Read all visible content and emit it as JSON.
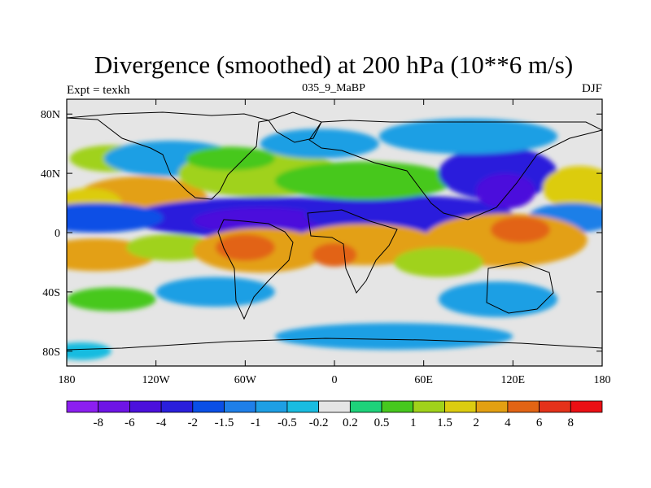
{
  "chart_data": {
    "type": "heatmap",
    "title": "Divergence (smoothed) at 200 hPa (10**6 m/s)",
    "subtitle_left": "Expt = texkh",
    "subtitle_center": "035_9_MaBP",
    "subtitle_right": "DJF",
    "xlim": [
      -180,
      180
    ],
    "ylim": [
      -90,
      90
    ],
    "x_ticks": [
      {
        "value": -180,
        "label": "180"
      },
      {
        "value": -120,
        "label": "120W"
      },
      {
        "value": -60,
        "label": "60W"
      },
      {
        "value": 0,
        "label": "0"
      },
      {
        "value": 60,
        "label": "60E"
      },
      {
        "value": 120,
        "label": "120E"
      },
      {
        "value": 180,
        "label": "180"
      }
    ],
    "y_ticks": [
      {
        "value": 80,
        "label": "80N"
      },
      {
        "value": 40,
        "label": "40N"
      },
      {
        "value": 0,
        "label": "0"
      },
      {
        "value": -40,
        "label": "40S"
      },
      {
        "value": -80,
        "label": "80S"
      }
    ],
    "colorbar": {
      "levels": [
        "-8",
        "-6",
        "-4",
        "-2",
        "-1.5",
        "-1",
        "-0.5",
        "-0.2",
        "0.2",
        "0.5",
        "1",
        "1.5",
        "2",
        "4",
        "6",
        "8"
      ],
      "colors": [
        "#8C1FF0",
        "#6E14E6",
        "#4B10DC",
        "#2A1FDC",
        "#0A4FE6",
        "#1F7FE8",
        "#1E9FE4",
        "#19BCE0",
        "#E5E5E5",
        "#1ED27A",
        "#46C81E",
        "#A0D21A",
        "#DCCC10",
        "#E3A012",
        "#E26414",
        "#E4321A",
        "#EB0F14"
      ]
    },
    "blobs": [
      {
        "lon": -130,
        "lat": 22,
        "rx": 45,
        "ry": 16,
        "value": 2.5
      },
      {
        "lon": -165,
        "lat": 20,
        "rx": 22,
        "ry": 10,
        "value": 1.5
      },
      {
        "lon": -150,
        "lat": 50,
        "rx": 28,
        "ry": 9,
        "value": 1.0
      },
      {
        "lon": -110,
        "lat": 50,
        "rx": 45,
        "ry": 12,
        "value": -0.6
      },
      {
        "lon": -50,
        "lat": 40,
        "rx": 55,
        "ry": 16,
        "value": 1.3
      },
      {
        "lon": -70,
        "lat": 50,
        "rx": 30,
        "ry": 8,
        "value": 0.6
      },
      {
        "lon": -40,
        "lat": 10,
        "rx": 100,
        "ry": 14,
        "value": -2.5
      },
      {
        "lon": -160,
        "lat": 10,
        "rx": 45,
        "ry": 10,
        "value": -2.0
      },
      {
        "lon": -50,
        "lat": 8,
        "rx": 45,
        "ry": 9,
        "value": -4.5
      },
      {
        "lon": 50,
        "lat": 12,
        "rx": 70,
        "ry": 13,
        "value": -3.0
      },
      {
        "lon": 20,
        "lat": 35,
        "rx": 60,
        "ry": 13,
        "value": 0.9
      },
      {
        "lon": -10,
        "lat": 60,
        "rx": 40,
        "ry": 10,
        "value": -0.6
      },
      {
        "lon": 110,
        "lat": 40,
        "rx": 40,
        "ry": 18,
        "value": -2.2
      },
      {
        "lon": 115,
        "lat": 28,
        "rx": 20,
        "ry": 12,
        "value": -5.0
      },
      {
        "lon": 90,
        "lat": 65,
        "rx": 60,
        "ry": 12,
        "value": -0.7
      },
      {
        "lon": 165,
        "lat": 30,
        "rx": 25,
        "ry": 15,
        "value": 1.5
      },
      {
        "lon": 160,
        "lat": 10,
        "rx": 30,
        "ry": 10,
        "value": -1.5
      },
      {
        "lon": 115,
        "lat": -5,
        "rx": 55,
        "ry": 18,
        "value": 2.2
      },
      {
        "lon": 125,
        "lat": 2,
        "rx": 20,
        "ry": 9,
        "value": 4.5
      },
      {
        "lon": -160,
        "lat": -15,
        "rx": 40,
        "ry": 11,
        "value": 2.3
      },
      {
        "lon": -110,
        "lat": -10,
        "rx": 30,
        "ry": 9,
        "value": 1.2
      },
      {
        "lon": -50,
        "lat": -12,
        "rx": 45,
        "ry": 15,
        "value": 2.5
      },
      {
        "lon": -60,
        "lat": -10,
        "rx": 20,
        "ry": 9,
        "value": 4.8
      },
      {
        "lon": 20,
        "lat": -8,
        "rx": 50,
        "ry": 14,
        "value": 2.3
      },
      {
        "lon": 0,
        "lat": -15,
        "rx": 15,
        "ry": 8,
        "value": 4.5
      },
      {
        "lon": 70,
        "lat": -20,
        "rx": 30,
        "ry": 10,
        "value": 1.0
      },
      {
        "lon": -80,
        "lat": -40,
        "rx": 40,
        "ry": 10,
        "value": -1.0
      },
      {
        "lon": 110,
        "lat": -45,
        "rx": 40,
        "ry": 12,
        "value": -1.0
      },
      {
        "lon": -150,
        "lat": -45,
        "rx": 30,
        "ry": 8,
        "value": 0.6
      },
      {
        "lon": 40,
        "lat": -70,
        "rx": 80,
        "ry": 9,
        "value": -0.6
      },
      {
        "lon": -170,
        "lat": -80,
        "rx": 20,
        "ry": 6,
        "value": -0.5
      }
    ]
  }
}
